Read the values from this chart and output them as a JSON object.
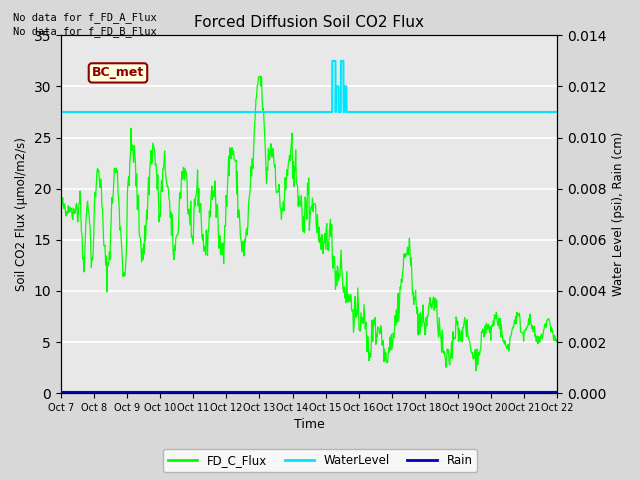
{
  "title": "Forced Diffusion Soil CO2 Flux",
  "xlabel": "Time",
  "ylabel_left": "Soil CO2 Flux (μmol/m2/s)",
  "ylabel_right": "Water Level (psi), Rain (cm)",
  "ylim_left": [
    0,
    35
  ],
  "ylim_right": [
    0,
    0.014
  ],
  "yticks_left": [
    0,
    5,
    10,
    15,
    20,
    25,
    30,
    35
  ],
  "yticks_right": [
    0.0,
    0.002,
    0.004,
    0.006,
    0.008,
    0.01,
    0.012,
    0.014
  ],
  "xtick_labels": [
    "Oct 7",
    "Oct 8",
    "Oct 9",
    "Oct 10",
    "Oct 11",
    "Oct 12",
    "Oct 13",
    "Oct 14",
    "Oct 15",
    "Oct 16",
    "Oct 17",
    "Oct 18",
    "Oct 19",
    "Oct 20",
    "Oct 21",
    "Oct 22"
  ],
  "fd_c_flux_color": "#00ff00",
  "water_level_color": "#00e5ff",
  "rain_color": "#0000bb",
  "bg_color": "#d8d8d8",
  "plot_bg_color": "#e8e8e8",
  "grid_color": "#ffffff",
  "no_data_text_1": "No data for f_FD_A_Flux",
  "no_data_text_2": "No data for f_FD_B_Flux",
  "bc_met_label": "BC_met",
  "legend_entries": [
    "FD_C_Flux",
    "WaterLevel",
    "Rain"
  ],
  "water_level_value": 0.011,
  "rain_value": 5e-05
}
